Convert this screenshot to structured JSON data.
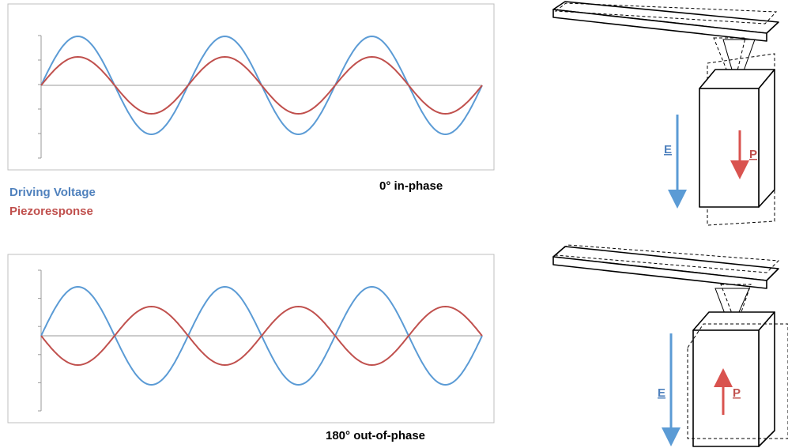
{
  "legend": {
    "driving_voltage": "Driving Voltage",
    "piezoresponse": "Piezoresponse"
  },
  "panels": [
    {
      "caption": "0° in-phase",
      "field_label": "E",
      "polarization_label": "P"
    },
    {
      "caption": "180° out-of-phase",
      "field_label": "E",
      "polarization_label": "P"
    }
  ]
}
